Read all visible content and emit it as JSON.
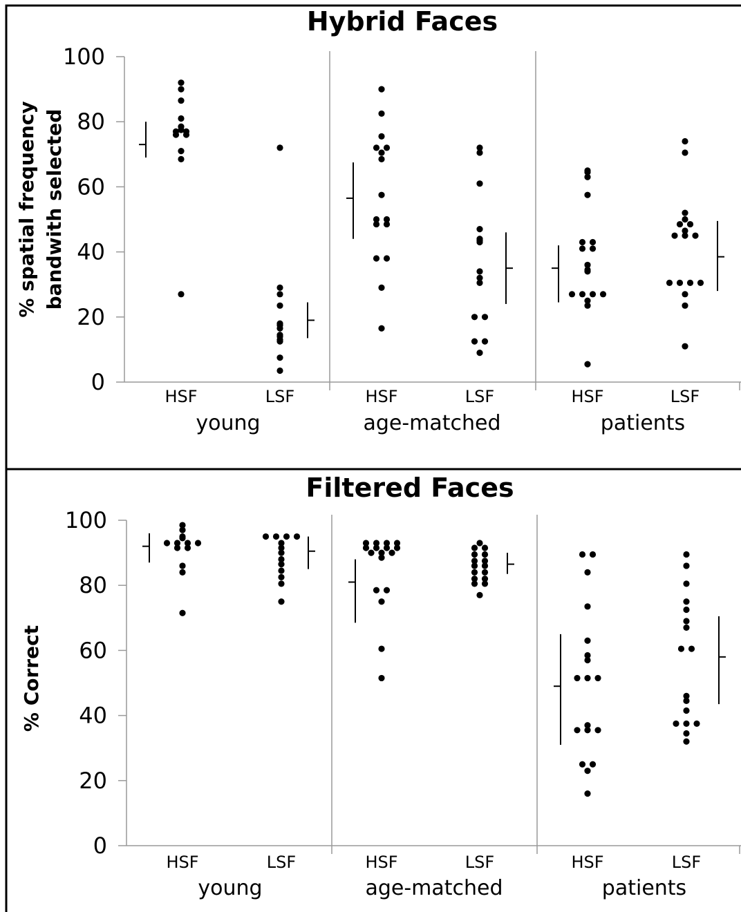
{
  "chart_data": [
    {
      "type": "scatter",
      "title": "Hybrid Faces",
      "ylabel_lines": [
        "% spatial frequency",
        "bandwith selected"
      ],
      "ylim": [
        0,
        100
      ],
      "yticks": [
        "0",
        "20",
        "40",
        "60",
        "80",
        "100"
      ],
      "grid": false,
      "legend": "none",
      "groups": [
        {
          "name": "young",
          "categories": [
            {
              "label": "HSF",
              "points": [
                92,
                90,
                86.5,
                81,
                78.5,
                77.5,
                77,
                77,
                76,
                76,
                71,
                68.5,
                27
              ],
              "mean": 73,
              "error": [
                69,
                80
              ]
            },
            {
              "label": "LSF",
              "points": [
                72,
                29,
                27,
                23.5,
                18,
                17.5,
                16.5,
                14.5,
                14,
                13,
                12.5,
                7.5,
                3.5
              ],
              "mean": 19,
              "error": [
                13.5,
                24.5
              ]
            }
          ]
        },
        {
          "name": "age-matched",
          "categories": [
            {
              "label": "HSF",
              "points": [
                90,
                82.5,
                75.5,
                72,
                72,
                70.5,
                68.5,
                57.5,
                50,
                50,
                48.5,
                48.5,
                38,
                38,
                29,
                16.5
              ],
              "mean": 56.5,
              "error": [
                44,
                67.5
              ]
            },
            {
              "label": "LSF",
              "points": [
                72,
                70.5,
                61,
                47,
                44,
                43.5,
                43,
                34,
                32,
                30.5,
                20,
                20,
                12.5,
                12.5,
                9
              ],
              "mean": 35,
              "error": [
                24,
                46
              ]
            },
            {
              "id": "x",
              "label": "",
              "points": []
            }
          ]
        },
        {
          "name": "patients",
          "categories": [
            {
              "label": "HSF",
              "points": [
                65,
                64.5,
                63,
                57.5,
                43,
                43,
                41,
                41,
                36,
                34.5,
                34,
                27,
                27,
                27,
                27,
                25,
                23.5,
                5.5
              ],
              "mean": 35,
              "error": [
                24.5,
                42
              ]
            },
            {
              "label": "LSF",
              "points": [
                74,
                70.5,
                52,
                50,
                48.5,
                48.5,
                46.5,
                45,
                45,
                45,
                30.5,
                30.5,
                30.5,
                30.5,
                27,
                23.5,
                11
              ],
              "mean": 38.5,
              "error": [
                28,
                49.5
              ]
            }
          ]
        }
      ]
    },
    {
      "type": "scatter",
      "title": "Filtered Faces",
      "ylabel_lines": [
        "% Correct"
      ],
      "ylim": [
        0,
        100
      ],
      "yticks": [
        "0",
        "20",
        "40",
        "60",
        "80",
        "100"
      ],
      "grid": false,
      "legend": "none",
      "groups": [
        {
          "name": "young",
          "categories": [
            {
              "label": "HSF",
              "points": [
                98.5,
                97,
                95,
                94.5,
                93,
                93,
                93,
                93,
                91.5,
                91.5,
                86,
                84,
                71.5
              ],
              "mean": 92,
              "error": [
                87,
                96
              ]
            },
            {
              "label": "LSF",
              "points": [
                95,
                95,
                95,
                95,
                93,
                91.5,
                90,
                88,
                86.5,
                84.5,
                82.5,
                80.5,
                75
              ],
              "mean": 90.5,
              "error": [
                85,
                95
              ]
            }
          ]
        },
        {
          "name": "age-matched",
          "categories": [
            {
              "label": "HSF",
              "points": [
                93,
                93,
                93,
                93,
                91.5,
                91.5,
                91.5,
                91.5,
                90,
                90,
                90,
                88.5,
                78.5,
                78.5,
                75,
                60.5,
                51.5
              ],
              "mean": 81,
              "error": [
                68.5,
                88
              ]
            },
            {
              "label": "LSF",
              "points": [
                93,
                91.5,
                91.5,
                89.5,
                89.5,
                87.5,
                87.5,
                86,
                86,
                84,
                84,
                82,
                82,
                80.5,
                80.5,
                77
              ],
              "mean": 86.5,
              "error": [
                83.5,
                90
              ]
            }
          ]
        },
        {
          "name": "patients",
          "categories": [
            {
              "label": "HSF",
              "points": [
                89.5,
                89.5,
                84,
                73.5,
                63,
                58.5,
                57,
                51.5,
                51.5,
                51.5,
                37,
                35.5,
                35.5,
                35.5,
                25,
                25,
                23,
                16
              ],
              "mean": 49,
              "error": [
                31,
                65
              ]
            },
            {
              "label": "LSF",
              "points": [
                89.5,
                86,
                80.5,
                75,
                72.5,
                69,
                67,
                60.5,
                60.5,
                46,
                44.5,
                41.5,
                37.5,
                37.5,
                37.5,
                34.5,
                32
              ],
              "mean": 58,
              "error": [
                43.5,
                70.5
              ]
            }
          ]
        }
      ]
    }
  ]
}
